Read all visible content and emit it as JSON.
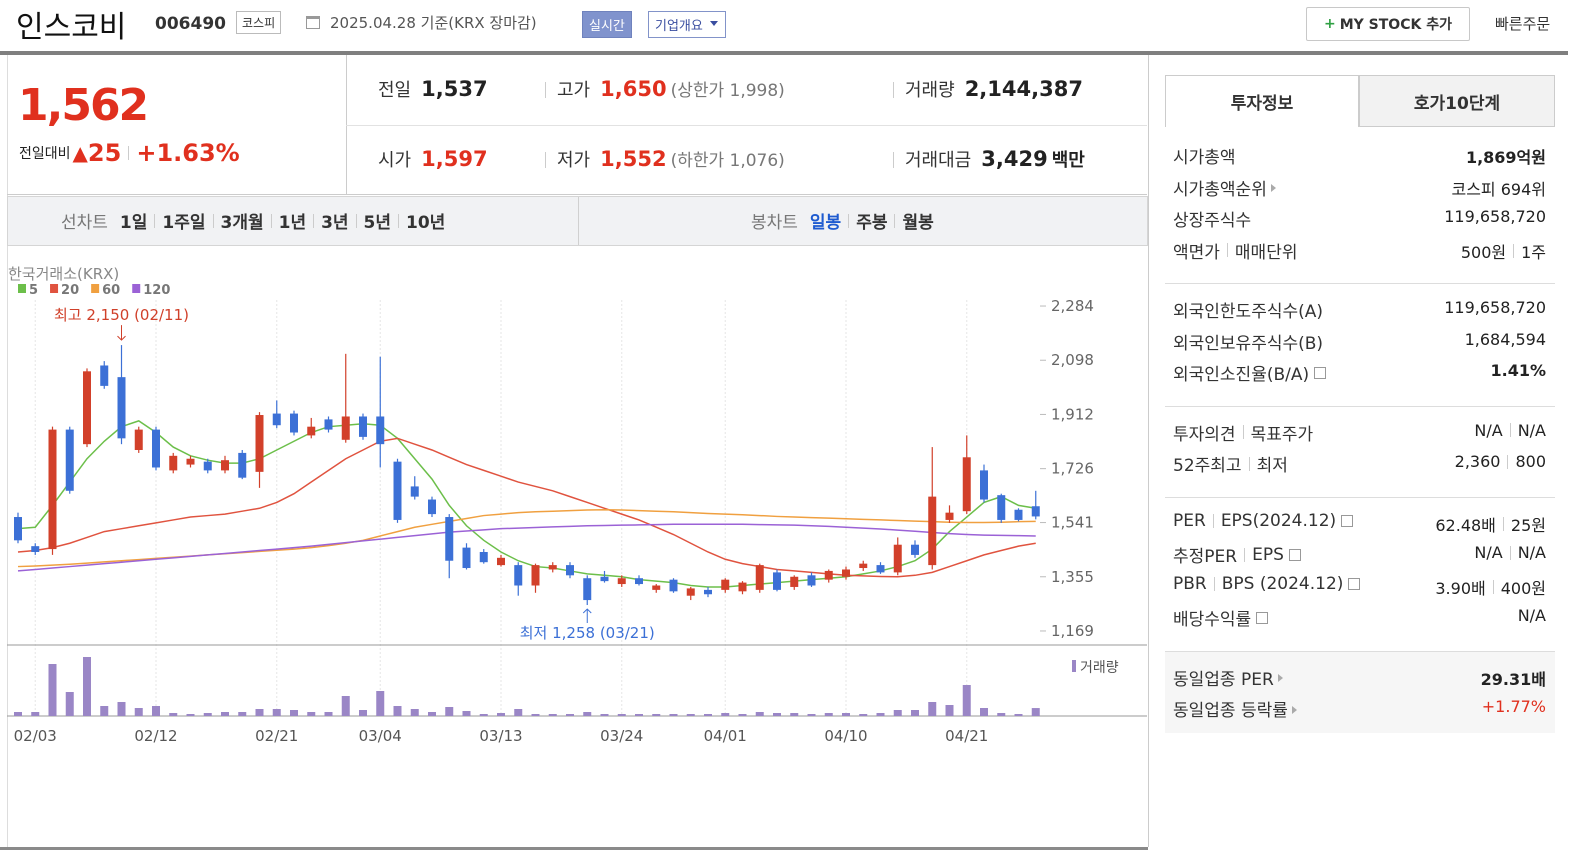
{
  "header": {
    "name": "인스코비",
    "code": "006490",
    "market": "코스피",
    "date": "2025.04.28 기준(KRX 장마감)",
    "realtime": "실시간",
    "company_info": "기업개요",
    "mystock_icon": "+",
    "mystock": "MY STOCK 추가",
    "quick_order": "빠른주문"
  },
  "quote": {
    "price": "1,562",
    "change_label": "전일대비",
    "change_arrow": "▲",
    "change": "25",
    "change_pct": "+1.63%",
    "rows": [
      [
        {
          "label": "전일",
          "value": "1,537"
        },
        {
          "label": "고가",
          "value": "1,650",
          "color": "#e0301e",
          "note": "(상한가 1,998)"
        },
        {
          "label": "거래량",
          "value": "2,144,387"
        }
      ],
      [
        {
          "label": "시가",
          "value": "1,597",
          "color": "#e0301e"
        },
        {
          "label": "저가",
          "value": "1,552",
          "color": "#e0301e",
          "note": "(하한가 1,076)"
        },
        {
          "label": "거래대금",
          "value": "3,429",
          "unit": "백만"
        }
      ]
    ]
  },
  "periods": {
    "line_label": "선차트",
    "line_items": [
      "1일",
      "1주일",
      "3개월",
      "1년",
      "3년",
      "5년",
      "10년"
    ],
    "candle_label": "봉차트",
    "candle_items": [
      "일봉",
      "주봉",
      "월봉"
    ],
    "active": "일봉"
  },
  "chart": {
    "type": "candlestick",
    "source": "한국거래소(KRX)",
    "up_color": "#d2402a",
    "down_color": "#3c70d6",
    "volume_color": "#9a86c6",
    "volume_label": "거래량",
    "annotations": {
      "high": "최고 2,150 (02/11)",
      "low": "최저 1,258 (03/21)"
    },
    "ylim": [
      1138,
      2315
    ],
    "yticks": [
      {
        "value": 2284,
        "label": "2,284"
      },
      {
        "value": 2098,
        "label": "2,098"
      },
      {
        "value": 1912,
        "label": "1,912"
      },
      {
        "value": 1726,
        "label": "1,726"
      },
      {
        "value": 1541,
        "label": "1,541"
      },
      {
        "value": 1355,
        "label": "1,355"
      },
      {
        "value": 1169,
        "label": "1,169"
      }
    ],
    "categories": [
      null,
      "02/03",
      null,
      null,
      null,
      null,
      null,
      null,
      "02/12",
      null,
      null,
      null,
      null,
      null,
      null,
      "02/21",
      null,
      null,
      null,
      null,
      null,
      "03/04",
      null,
      null,
      null,
      null,
      null,
      null,
      "03/13",
      null,
      null,
      null,
      null,
      null,
      null,
      "03/24",
      null,
      null,
      null,
      null,
      null,
      "04/01",
      null,
      null,
      null,
      null,
      null,
      null,
      "04/10",
      null,
      null,
      null,
      null,
      null,
      null,
      "04/21",
      null,
      null,
      null,
      null
    ],
    "candles": [
      [
        1560,
        1575,
        1470,
        1480
      ],
      [
        1460,
        1470,
        1430,
        1440
      ],
      [
        1450,
        1870,
        1430,
        1860
      ],
      [
        1860,
        1870,
        1640,
        1650
      ],
      [
        1810,
        2070,
        1800,
        2060
      ],
      [
        2080,
        2095,
        2000,
        2010
      ],
      [
        2040,
        2150,
        1810,
        1830
      ],
      [
        1790,
        1870,
        1780,
        1860
      ],
      [
        1860,
        1870,
        1720,
        1730
      ],
      [
        1720,
        1780,
        1710,
        1770
      ],
      [
        1740,
        1770,
        1730,
        1760
      ],
      [
        1750,
        1760,
        1710,
        1720
      ],
      [
        1720,
        1770,
        1710,
        1755
      ],
      [
        1780,
        1790,
        1690,
        1695
      ],
      [
        1715,
        1920,
        1660,
        1910
      ],
      [
        1915,
        1960,
        1865,
        1875
      ],
      [
        1915,
        1925,
        1840,
        1850
      ],
      [
        1840,
        1900,
        1830,
        1870
      ],
      [
        1895,
        1905,
        1850,
        1860
      ],
      [
        1825,
        2120,
        1815,
        1905
      ],
      [
        1905,
        1915,
        1825,
        1835
      ],
      [
        1905,
        2110,
        1730,
        1810
      ],
      [
        1750,
        1760,
        1540,
        1550
      ],
      [
        1665,
        1700,
        1620,
        1630
      ],
      [
        1620,
        1630,
        1560,
        1570
      ],
      [
        1560,
        1570,
        1350,
        1410
      ],
      [
        1455,
        1470,
        1380,
        1385
      ],
      [
        1440,
        1450,
        1400,
        1405
      ],
      [
        1395,
        1430,
        1390,
        1420
      ],
      [
        1395,
        1405,
        1290,
        1325
      ],
      [
        1325,
        1400,
        1300,
        1395
      ],
      [
        1380,
        1405,
        1370,
        1395
      ],
      [
        1395,
        1405,
        1350,
        1360
      ],
      [
        1350,
        1360,
        1258,
        1275
      ],
      [
        1355,
        1375,
        1335,
        1340
      ],
      [
        1330,
        1360,
        1320,
        1350
      ],
      [
        1350,
        1360,
        1325,
        1330
      ],
      [
        1310,
        1330,
        1300,
        1325
      ],
      [
        1345,
        1350,
        1300,
        1305
      ],
      [
        1290,
        1320,
        1275,
        1315
      ],
      [
        1310,
        1320,
        1285,
        1295
      ],
      [
        1310,
        1350,
        1300,
        1345
      ],
      [
        1305,
        1340,
        1295,
        1335
      ],
      [
        1310,
        1400,
        1300,
        1395
      ],
      [
        1370,
        1380,
        1305,
        1310
      ],
      [
        1320,
        1360,
        1310,
        1355
      ],
      [
        1360,
        1370,
        1320,
        1325
      ],
      [
        1345,
        1380,
        1335,
        1375
      ],
      [
        1355,
        1390,
        1345,
        1380
      ],
      [
        1385,
        1410,
        1375,
        1400
      ],
      [
        1395,
        1405,
        1365,
        1370
      ],
      [
        1370,
        1490,
        1360,
        1465
      ],
      [
        1465,
        1480,
        1420,
        1430
      ],
      [
        1395,
        1800,
        1380,
        1630
      ],
      [
        1550,
        1600,
        1540,
        1575
      ],
      [
        1580,
        1840,
        1570,
        1765
      ],
      [
        1720,
        1740,
        1610,
        1620
      ],
      [
        1635,
        1640,
        1540,
        1550
      ],
      [
        1585,
        1590,
        1545,
        1550
      ],
      [
        1597,
        1650,
        1552,
        1562
      ]
    ],
    "volume": [
      1080000,
      1080000,
      14040000,
      6480000,
      15930000,
      2700000,
      3780000,
      2160000,
      2700000,
      810000,
      540000,
      810000,
      1080000,
      1080000,
      1890000,
      1890000,
      1620000,
      1080000,
      1080000,
      5400000,
      1620000,
      6750000,
      2700000,
      1890000,
      1080000,
      2430000,
      1350000,
      540000,
      810000,
      1890000,
      540000,
      540000,
      540000,
      1080000,
      540000,
      540000,
      540000,
      540000,
      540000,
      540000,
      540000,
      810000,
      540000,
      1080000,
      810000,
      810000,
      540000,
      810000,
      810000,
      540000,
      810000,
      1620000,
      1620000,
      3780000,
      2970000,
      8370000,
      2160000,
      810000,
      540000,
      2144387
    ],
    "ma": [
      {
        "name": "5",
        "color": "#6cbf4a",
        "values": [
          1520,
          1525,
          1600,
          1680,
          1760,
          1820,
          1870,
          1890,
          1850,
          1800,
          1770,
          1755,
          1745,
          1745,
          1760,
          1790,
          1820,
          1850,
          1870,
          1875,
          1880,
          1875,
          1830,
          1760,
          1690,
          1600,
          1530,
          1480,
          1440,
          1410,
          1390,
          1385,
          1375,
          1365,
          1360,
          1355,
          1345,
          1340,
          1335,
          1325,
          1320,
          1320,
          1325,
          1330,
          1335,
          1340,
          1345,
          1350,
          1355,
          1365,
          1375,
          1390,
          1410,
          1450,
          1510,
          1560,
          1610,
          1630,
          1600,
          1590
        ]
      },
      {
        "name": "20",
        "color": "#e0533f",
        "values": [
          1440,
          1445,
          1455,
          1470,
          1490,
          1510,
          1520,
          1530,
          1540,
          1550,
          1560,
          1565,
          1570,
          1580,
          1590,
          1610,
          1640,
          1680,
          1720,
          1760,
          1790,
          1820,
          1830,
          1810,
          1790,
          1765,
          1740,
          1720,
          1700,
          1680,
          1665,
          1650,
          1630,
          1610,
          1590,
          1570,
          1550,
          1525,
          1500,
          1470,
          1440,
          1415,
          1400,
          1390,
          1380,
          1375,
          1370,
          1365,
          1360,
          1358,
          1356,
          1355,
          1360,
          1370,
          1390,
          1410,
          1430,
          1445,
          1460,
          1470
        ]
      },
      {
        "name": "60",
        "color": "#f0a040",
        "values": [
          1390,
          1392,
          1395,
          1398,
          1402,
          1406,
          1410,
          1414,
          1418,
          1422,
          1426,
          1430,
          1434,
          1438,
          1442,
          1446,
          1450,
          1455,
          1462,
          1470,
          1480,
          1495,
          1510,
          1525,
          1535,
          1545,
          1555,
          1565,
          1570,
          1575,
          1578,
          1580,
          1582,
          1584,
          1585,
          1584,
          1582,
          1580,
          1578,
          1575,
          1572,
          1570,
          1568,
          1565,
          1562,
          1560,
          1558,
          1556,
          1554,
          1552,
          1550,
          1548,
          1546,
          1544,
          1542,
          1541,
          1541,
          1542,
          1544,
          1545
        ]
      },
      {
        "name": "120",
        "color": "#9b62d6",
        "values": [
          1375,
          1380,
          1385,
          1390,
          1395,
          1400,
          1405,
          1410,
          1415,
          1420,
          1425,
          1430,
          1435,
          1440,
          1445,
          1450,
          1455,
          1460,
          1466,
          1472,
          1478,
          1484,
          1490,
          1496,
          1502,
          1508,
          1512,
          1516,
          1520,
          1522,
          1524,
          1526,
          1528,
          1530,
          1531,
          1532,
          1533,
          1534,
          1535,
          1535,
          1535,
          1535,
          1535,
          1534,
          1533,
          1532,
          1530,
          1528,
          1525,
          1522,
          1519,
          1515,
          1511,
          1507,
          1503,
          1500,
          1498,
          1497,
          1496,
          1495
        ]
      }
    ]
  },
  "side": {
    "tabs": [
      "투자정보",
      "호가10단계"
    ],
    "groups": [
      {
        "rows": [
          {
            "labels": [
              "시가총액"
            ],
            "values": [
              "1,869억원"
            ],
            "bold": true
          },
          {
            "labels": [
              "시가총액순위"
            ],
            "link": true,
            "values": [
              "코스피 694위"
            ]
          },
          {
            "labels": [
              "상장주식수"
            ],
            "values": [
              "119,658,720"
            ]
          },
          {
            "labels": [
              "액면가",
              "매매단위"
            ],
            "values": [
              "500원",
              "1주"
            ]
          }
        ]
      },
      {
        "rows": [
          {
            "labels": [
              "외국인한도주식수(A)"
            ],
            "values": [
              "119,658,720"
            ]
          },
          {
            "labels": [
              "외국인보유주식수(B)"
            ],
            "values": [
              "1,684,594"
            ]
          },
          {
            "labels": [
              "외국인소진율(B/A)"
            ],
            "help": true,
            "values": [
              "1.41%"
            ],
            "bold": true
          }
        ]
      },
      {
        "rows": [
          {
            "labels": [
              "투자의견",
              "목표주가"
            ],
            "values": [
              "N/A",
              "N/A"
            ]
          },
          {
            "labels": [
              "52주최고",
              "최저"
            ],
            "values": [
              "2,360",
              "800"
            ]
          }
        ]
      },
      {
        "rows": [
          {
            "labels": [
              "PER",
              "EPS(2024.12)"
            ],
            "help": true,
            "values": [
              "62.48배",
              "25원"
            ]
          },
          {
            "labels": [
              "추정PER",
              "EPS"
            ],
            "help": true,
            "values": [
              "N/A",
              "N/A"
            ]
          },
          {
            "labels": [
              "PBR",
              "BPS (2024.12)"
            ],
            "help": true,
            "values": [
              "3.90배",
              "400원"
            ]
          },
          {
            "labels": [
              "배당수익률"
            ],
            "help": true,
            "values": [
              "N/A"
            ]
          }
        ]
      },
      {
        "shaded": true,
        "rows": [
          {
            "labels": [
              "동일업종 PER"
            ],
            "link": true,
            "values": [
              "29.31배"
            ],
            "bold": true
          },
          {
            "labels": [
              "동일업종 등락률"
            ],
            "link": true,
            "values": [
              "+1.77%"
            ],
            "color": "#e0301e"
          }
        ]
      }
    ]
  }
}
